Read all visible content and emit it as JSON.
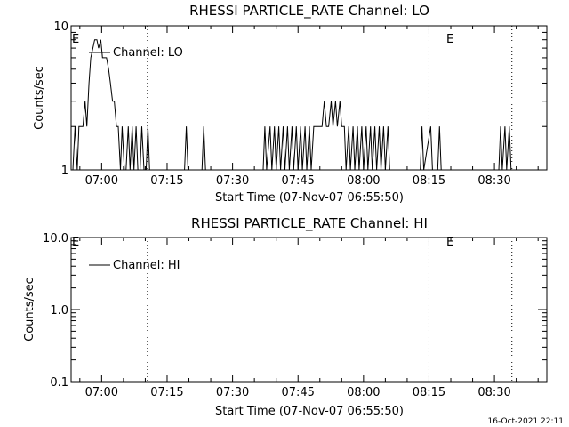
{
  "footer": {
    "timestamp": "16-Oct-2021 22:11"
  },
  "chart_data": [
    {
      "type": "line",
      "title": "RHESSI PARTICLE_RATE Channel: LO",
      "xlabel": "Start Time (07-Nov-07 06:55:50)",
      "ylabel": "Counts/sec",
      "yscale": "log",
      "ylim": [
        1,
        10
      ],
      "y_ticks": [
        "1",
        "10"
      ],
      "x_ticks": [
        "07:00",
        "07:15",
        "07:30",
        "07:45",
        "08:00",
        "08:15",
        "08:30"
      ],
      "x_tick_minutes": [
        7,
        22,
        37,
        52,
        67,
        82,
        97
      ],
      "xlim_minutes": [
        0,
        109
      ],
      "legend": {
        "label": "Channel: LO",
        "placement": "top-left"
      },
      "markers": [
        {
          "label": "E",
          "minute": 0
        },
        {
          "label": "E",
          "minute": 82
        }
      ],
      "vlines_minutes": [
        17.5,
        82,
        101
      ],
      "series": [
        {
          "values": [
            [
              0,
              1
            ],
            [
              0.4,
              1
            ],
            [
              0.9,
              2
            ],
            [
              1.4,
              1
            ],
            [
              1.8,
              2
            ],
            [
              2.3,
              2
            ],
            [
              2.7,
              2
            ],
            [
              3.2,
              3
            ],
            [
              3.6,
              2
            ],
            [
              4.1,
              4
            ],
            [
              4.5,
              6
            ],
            [
              5,
              7
            ],
            [
              5.4,
              8
            ],
            [
              5.9,
              8
            ],
            [
              6.3,
              7
            ],
            [
              6.8,
              8
            ],
            [
              7.2,
              6
            ],
            [
              7.7,
              6
            ],
            [
              8.1,
              6
            ],
            [
              8.6,
              5
            ],
            [
              9.0,
              4
            ],
            [
              9.5,
              3
            ],
            [
              9.9,
              3
            ],
            [
              10.4,
              2
            ],
            [
              10.8,
              2
            ],
            [
              11.3,
              1
            ],
            [
              11.7,
              2
            ],
            [
              12.2,
              1
            ],
            [
              12.6,
              1
            ],
            [
              13.1,
              2
            ],
            [
              13.5,
              1
            ],
            [
              14,
              2
            ],
            [
              14.4,
              1
            ],
            [
              14.9,
              2
            ],
            [
              15.3,
              1
            ],
            [
              15.8,
              1
            ],
            [
              16.2,
              2
            ],
            [
              16.7,
              1
            ],
            [
              17.2,
              1
            ],
            [
              17.6,
              2
            ],
            [
              18,
              1
            ],
            [
              26,
              1
            ],
            [
              26.4,
              2
            ],
            [
              26.8,
              1
            ],
            [
              30,
              1
            ],
            [
              30.4,
              2
            ],
            [
              30.8,
              1
            ],
            [
              44,
              1
            ],
            [
              44.4,
              2
            ],
            [
              44.8,
              1
            ],
            [
              45.6,
              2
            ],
            [
              46,
              1
            ],
            [
              46.6,
              2
            ],
            [
              47,
              1
            ],
            [
              47.6,
              2
            ],
            [
              48,
              1
            ],
            [
              48.6,
              2
            ],
            [
              49,
              1
            ],
            [
              49.6,
              2
            ],
            [
              50,
              1
            ],
            [
              50.6,
              2
            ],
            [
              51,
              1
            ],
            [
              51.6,
              2
            ],
            [
              52,
              1
            ],
            [
              52.6,
              2
            ],
            [
              53,
              1
            ],
            [
              53.6,
              2
            ],
            [
              54,
              1
            ],
            [
              54.6,
              2
            ],
            [
              55,
              1
            ],
            [
              55.6,
              2
            ],
            [
              56,
              2
            ],
            [
              56.5,
              2
            ],
            [
              57,
              2
            ],
            [
              57.5,
              2
            ],
            [
              58,
              3
            ],
            [
              58.5,
              2
            ],
            [
              59,
              2
            ],
            [
              59.6,
              3
            ],
            [
              60,
              2
            ],
            [
              60.6,
              3
            ],
            [
              61,
              2
            ],
            [
              61.6,
              3
            ],
            [
              62,
              2
            ],
            [
              62.6,
              2
            ],
            [
              63,
              1
            ],
            [
              63.6,
              2
            ],
            [
              64,
              1
            ],
            [
              64.6,
              2
            ],
            [
              65,
              1
            ],
            [
              65.6,
              2
            ],
            [
              66,
              1
            ],
            [
              66.6,
              2
            ],
            [
              67,
              1
            ],
            [
              67.6,
              2
            ],
            [
              68,
              1
            ],
            [
              68.6,
              2
            ],
            [
              69,
              1
            ],
            [
              69.6,
              2
            ],
            [
              70,
              1
            ],
            [
              70.6,
              2
            ],
            [
              71,
              1
            ],
            [
              71.6,
              2
            ],
            [
              72,
              1
            ],
            [
              72.6,
              2
            ],
            [
              73,
              1
            ],
            [
              80,
              1
            ],
            [
              80.4,
              2
            ],
            [
              80.8,
              1
            ],
            [
              82.4,
              2
            ],
            [
              82.8,
              1
            ],
            [
              84,
              1
            ],
            [
              84.4,
              2
            ],
            [
              84.8,
              1
            ],
            [
              98,
              1
            ],
            [
              98.4,
              2
            ],
            [
              98.8,
              1
            ],
            [
              99.4,
              2
            ],
            [
              99.8,
              1
            ],
            [
              100.4,
              2
            ],
            [
              100.8,
              1
            ],
            [
              101.3,
              1
            ]
          ]
        }
      ]
    },
    {
      "type": "line",
      "title": "RHESSI PARTICLE_RATE Channel: HI",
      "xlabel": "Start Time (07-Nov-07 06:55:50)",
      "ylabel": "Counts/sec",
      "yscale": "log",
      "ylim": [
        0.1,
        10
      ],
      "y_ticks": [
        "0.1",
        "1.0",
        "10.0"
      ],
      "x_ticks": [
        "07:00",
        "07:15",
        "07:30",
        "07:45",
        "08:00",
        "08:15",
        "08:30"
      ],
      "x_tick_minutes": [
        7,
        22,
        37,
        52,
        67,
        82,
        97
      ],
      "xlim_minutes": [
        0,
        109
      ],
      "legend": {
        "label": "Channel: HI",
        "placement": "top-left"
      },
      "markers": [
        {
          "label": "E",
          "minute": 0
        },
        {
          "label": "E",
          "minute": 82
        }
      ],
      "vlines_minutes": [
        17.5,
        82,
        101
      ],
      "series": [
        {
          "values": []
        }
      ]
    }
  ]
}
